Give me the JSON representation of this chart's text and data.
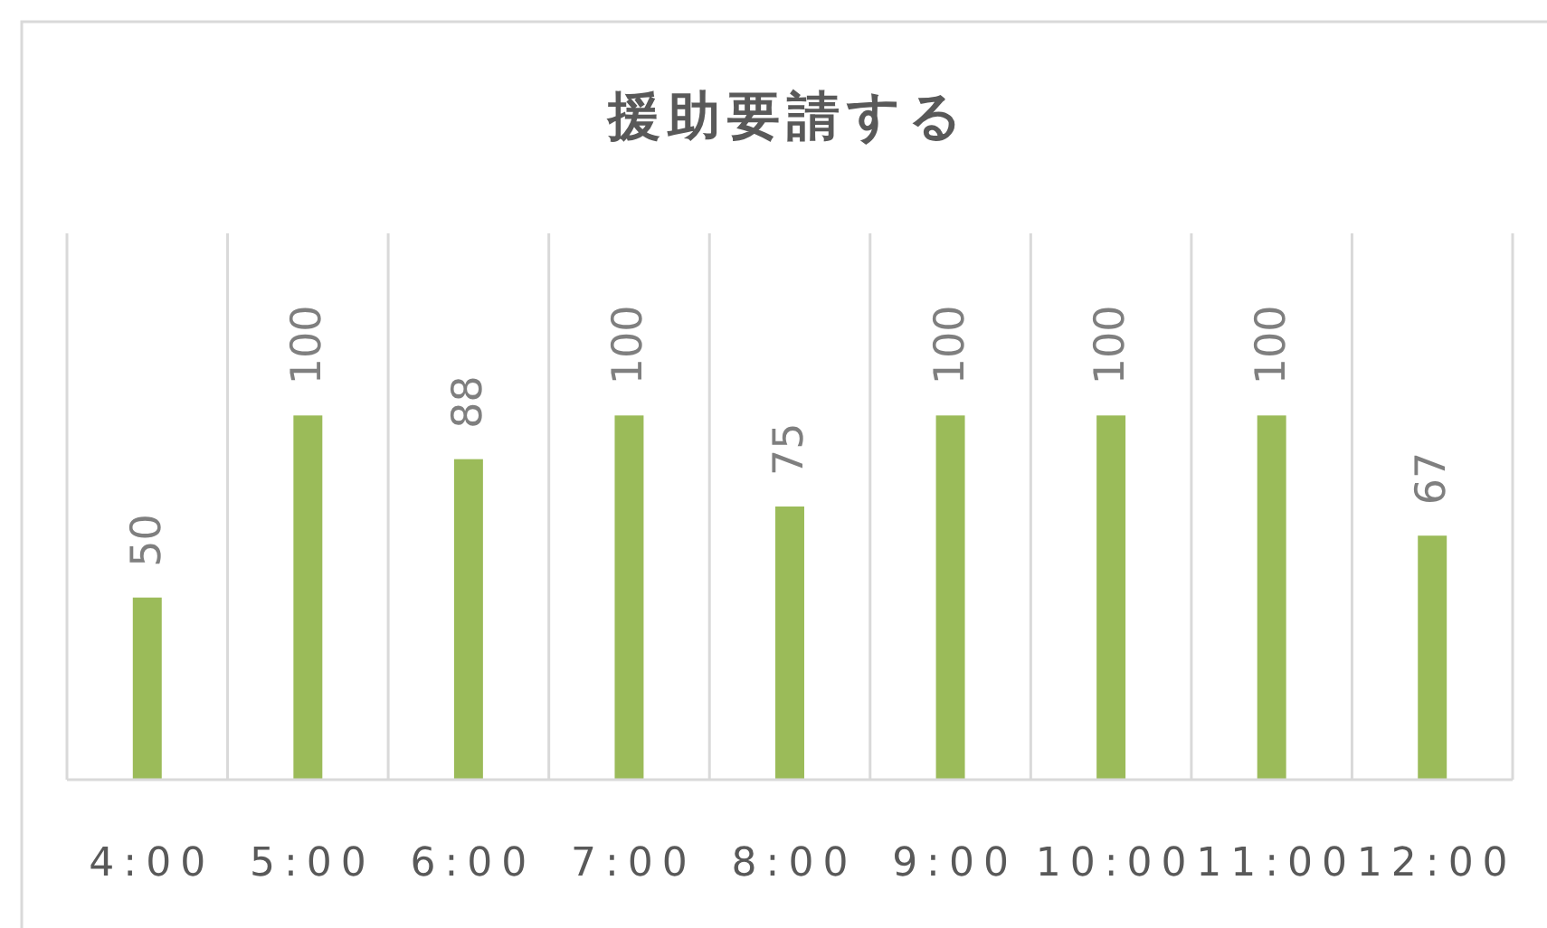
{
  "chart_data": {
    "type": "bar",
    "title": "援助要請する",
    "categories": [
      "4:00",
      "5:00",
      "6:00",
      "7:00",
      "8:00",
      "9:00",
      "10:00",
      "11:00",
      "12:00"
    ],
    "values": [
      50,
      100,
      88,
      100,
      75,
      100,
      100,
      100,
      67
    ],
    "color": "#9bbb59",
    "data_labels": true,
    "grid": "x"
  }
}
